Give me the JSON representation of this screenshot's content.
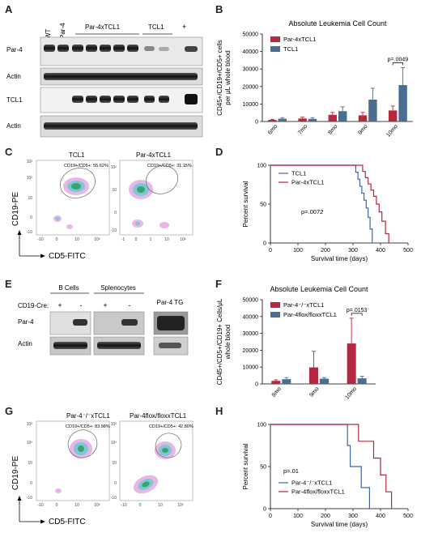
{
  "panels": {
    "a": "A",
    "b": "B",
    "c": "C",
    "d": "D",
    "e": "E",
    "f": "F",
    "g": "G",
    "h": "H"
  },
  "panel_a": {
    "lane_labels": [
      "WT",
      "Par-4",
      "Par-4xTCL1",
      "TCL1",
      "+"
    ],
    "row_labels": [
      "Par-4",
      "Actin",
      "TCL1",
      "Actin"
    ]
  },
  "panel_c": {
    "left_title": "TCL1",
    "left_gate": "CD19+/CD5+: 55.62%",
    "right_title": "Par-4xTCL1",
    "right_gate": "CD19+/CD5+: 31.15%",
    "y_axis": "CD19-PE",
    "x_axis": "CD5-FITC",
    "left_yticks": [
      "10³",
      "10²",
      "10",
      "0",
      "-10"
    ],
    "left_xticks": [
      "-10",
      "0",
      "10",
      "10²"
    ],
    "right_yticks": [
      "10²",
      "10",
      "0",
      "-10"
    ],
    "right_xticks": [
      "-1",
      "0",
      "1",
      "10",
      "10²"
    ]
  },
  "panel_e": {
    "bcell_header": "B Cells",
    "spleno_header": "Splenocytes",
    "cre_label": "CD19-Cre:",
    "signs": [
      "+",
      "-",
      "+",
      "-"
    ],
    "tg_label": "Par-4 TG",
    "row_labels": [
      "Par-4",
      "Actin"
    ]
  },
  "panel_g": {
    "left_title": "Par-4⁻/⁻xTCL1",
    "left_gate": "CD19+/CD5+: 83.98%",
    "right_title": "Par-4flox/floxxTCL1",
    "right_gate": "CD19+/CD5+: 42.80%",
    "y_axis": "CD19-PE",
    "x_axis": "CD5-FITC",
    "yticks": [
      "10³",
      "10²",
      "10",
      "0",
      "-10"
    ],
    "xticks": [
      "-10",
      "0",
      "10",
      "10²"
    ]
  },
  "chart_data": [
    {
      "id": "B",
      "type": "bar",
      "title": "Absolute Leukemia Cell Count",
      "ylabel": "CD45+/CD19+/CD5+ cells per μL whole blood",
      "ylim": [
        0,
        50000
      ],
      "yticks": [
        0,
        10000,
        20000,
        30000,
        40000,
        50000
      ],
      "categories": [
        "6mo",
        "7mo",
        "8mo",
        "9mo",
        "10mo"
      ],
      "series": [
        {
          "name": "Par-4xTCL1",
          "color": "#b5283f",
          "values": [
            900,
            1700,
            3800,
            3500,
            6300
          ],
          "errors": [
            300,
            800,
            1400,
            1700,
            2500
          ]
        },
        {
          "name": "TCL1",
          "color": "#4a6e92",
          "values": [
            1600,
            1500,
            5900,
            12500,
            20800
          ],
          "errors": [
            600,
            700,
            2500,
            6500,
            10000
          ]
        }
      ],
      "annotation": "p=.0049",
      "legend_position": "top-left"
    },
    {
      "id": "D",
      "type": "line",
      "title": "",
      "xlabel": "Survival time (days)",
      "ylabel": "Percent survival",
      "xlim": [
        0,
        500
      ],
      "ylim": [
        0,
        100
      ],
      "xticks": [
        0,
        100,
        200,
        300,
        400,
        500
      ],
      "yticks": [
        0,
        50,
        100
      ],
      "series": [
        {
          "name": "TCL1",
          "color": "#3d68a8",
          "x": [
            0,
            300,
            310,
            318,
            325,
            332,
            340,
            348,
            355,
            362,
            370
          ],
          "y": [
            100,
            100,
            91,
            82,
            73,
            64,
            55,
            45,
            33,
            18,
            0
          ]
        },
        {
          "name": "Par-4xTCL1",
          "color": "#b5283f",
          "x": [
            0,
            320,
            335,
            345,
            355,
            365,
            375,
            385,
            395,
            405,
            418,
            430
          ],
          "y": [
            100,
            100,
            92,
            84,
            76,
            68,
            60,
            50,
            40,
            28,
            12,
            0
          ]
        }
      ],
      "annotation": "p=.0072",
      "legend_position": "top-left"
    },
    {
      "id": "F",
      "type": "bar",
      "title": "Absolute Leukemia Cell Count",
      "ylabel": "CD45+/CD5+/CD19+ Cells/μL whole blood",
      "ylim": [
        0,
        50000
      ],
      "yticks": [
        0,
        10000,
        20000,
        30000,
        40000,
        50000
      ],
      "categories": [
        "8mo",
        "9mo",
        "10mo"
      ],
      "series": [
        {
          "name": "Par-4⁻/⁻xTCL1",
          "color": "#b5283f",
          "values": [
            1800,
            9800,
            24000
          ],
          "errors": [
            600,
            9500,
            15000
          ]
        },
        {
          "name": "Par-4flox/floxxTCL1",
          "color": "#4a6e92",
          "values": [
            2800,
            3100,
            3300
          ],
          "errors": [
            900,
            600,
            1200
          ]
        }
      ],
      "annotation": "p=.0153",
      "legend_position": "top-left"
    },
    {
      "id": "H",
      "type": "line",
      "title": "",
      "xlabel": "Survival time (days)",
      "ylabel": "Percent survival",
      "xlim": [
        0,
        500
      ],
      "ylim": [
        0,
        100
      ],
      "xticks": [
        0,
        100,
        200,
        300,
        400,
        500
      ],
      "yticks": [
        0,
        50,
        100
      ],
      "series": [
        {
          "name": "Par-4⁻/⁻xTCL1",
          "color": "#3d68a8",
          "x": [
            0,
            255,
            280,
            290,
            320,
            330,
            350,
            360
          ],
          "y": [
            100,
            100,
            75,
            50,
            50,
            25,
            25,
            0
          ]
        },
        {
          "name": "Par-4flox/floxxTCL1",
          "color": "#b5283f",
          "x": [
            0,
            290,
            320,
            360,
            375,
            400,
            420,
            440
          ],
          "y": [
            100,
            100,
            80,
            80,
            60,
            40,
            20,
            0
          ]
        }
      ],
      "annotation": "p=.01",
      "legend_position": "bottom-left"
    }
  ]
}
